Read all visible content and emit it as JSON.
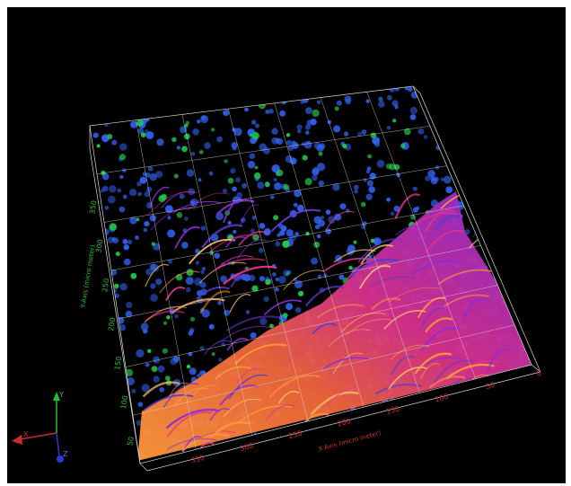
{
  "viewer": {
    "background": "#000000",
    "colors": {
      "x_axis": "#d12a2a",
      "y_axis": "#27c12b",
      "z_axis": "#2a3ad1",
      "nuclei": "#2f5ee8",
      "marker": "#22c94a",
      "tissue_hot": "#ff9a3c",
      "tissue_mid": "#e0338f",
      "tissue_cool": "#8a2bd8",
      "grid": "#d8d8d8"
    },
    "x_axis": {
      "title": "X-Axis (micro meter)",
      "ticks": [
        "350",
        "300",
        "250",
        "200",
        "150",
        "100",
        "50",
        "0"
      ]
    },
    "y_axis": {
      "title": "Y-Axis (micro meter)",
      "ticks": [
        "50",
        "100",
        "150",
        "200",
        "250",
        "300",
        "350"
      ]
    },
    "orientation_triad": {
      "x_label": "X",
      "y_label": "Y",
      "z_label": "Z"
    }
  }
}
